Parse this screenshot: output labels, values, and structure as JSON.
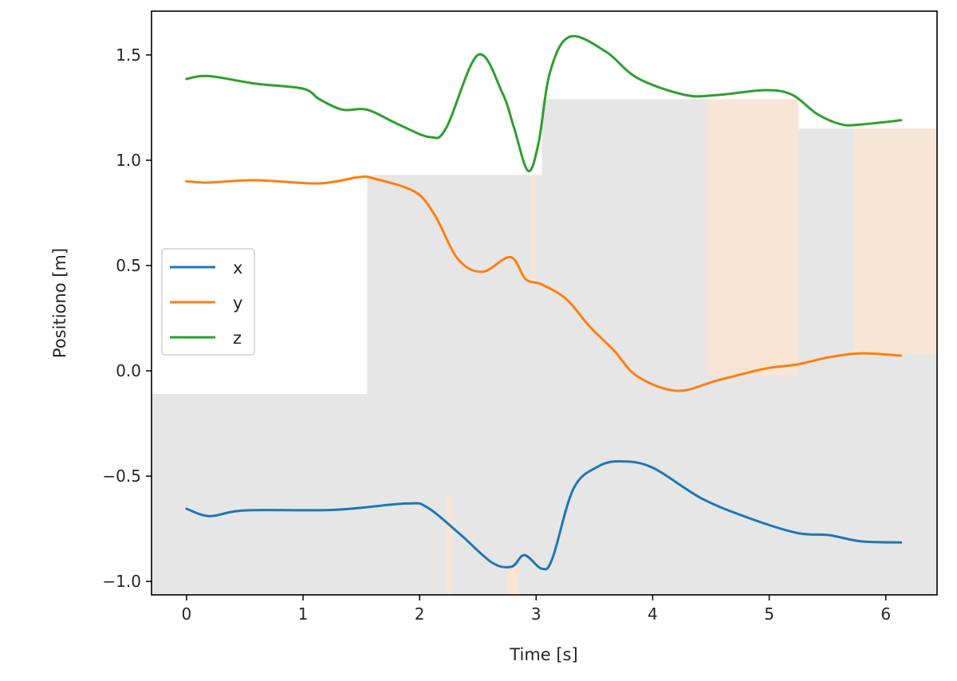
{
  "chart_data": {
    "type": "line",
    "title": "",
    "xlabel": "Time [s]",
    "ylabel": "Positiono [m]",
    "xlim": [
      -0.3,
      6.44
    ],
    "ylim": [
      -1.064,
      1.708
    ],
    "xticks": [
      0,
      1,
      2,
      3,
      4,
      5,
      6
    ],
    "xtick_labels": [
      "0",
      "1",
      "2",
      "3",
      "4",
      "5",
      "6"
    ],
    "yticks": [
      -1.0,
      -0.5,
      0.0,
      0.5,
      1.0,
      1.5
    ],
    "ytick_labels": [
      "−1.0",
      "−0.5",
      "0.0",
      "0.5",
      "1.0",
      "1.5"
    ],
    "grid": false,
    "legend": "center-left",
    "series": [
      {
        "name": "x",
        "color": "#1f77b4",
        "t": [
          0,
          0.2,
          0.5,
          1.27,
          1.89,
          2.07,
          2.35,
          2.62,
          2.79,
          2.9,
          3.05,
          3.14,
          3.32,
          3.53,
          3.73,
          4.0,
          4.42,
          4.83,
          5.24,
          5.51,
          5.79,
          6.13
        ],
        "values": [
          -0.655,
          -0.69,
          -0.663,
          -0.66,
          -0.63,
          -0.65,
          -0.777,
          -0.91,
          -0.93,
          -0.875,
          -0.94,
          -0.89,
          -0.56,
          -0.455,
          -0.43,
          -0.46,
          -0.606,
          -0.7,
          -0.77,
          -0.78,
          -0.81,
          -0.815
        ]
      },
      {
        "name": "y",
        "color": "#ff7f0e",
        "t": [
          0,
          0.19,
          0.59,
          1.14,
          1.48,
          1.61,
          1.96,
          2.13,
          2.33,
          2.54,
          2.78,
          2.91,
          3.05,
          3.26,
          3.46,
          3.67,
          3.87,
          4.21,
          4.56,
          4.97,
          5.24,
          5.51,
          5.79,
          6.13
        ],
        "values": [
          0.9,
          0.894,
          0.905,
          0.89,
          0.92,
          0.913,
          0.85,
          0.74,
          0.53,
          0.47,
          0.54,
          0.435,
          0.41,
          0.34,
          0.21,
          0.095,
          -0.027,
          -0.095,
          -0.045,
          0.011,
          0.03,
          0.064,
          0.083,
          0.072
        ]
      },
      {
        "name": "z",
        "color": "#2ca02c",
        "t": [
          0,
          0.19,
          0.59,
          1.0,
          1.14,
          1.34,
          1.55,
          1.82,
          2.09,
          2.23,
          2.5,
          2.71,
          2.81,
          2.93,
          3.02,
          3.12,
          3.29,
          3.6,
          3.87,
          4.28,
          4.56,
          4.97,
          5.2,
          5.41,
          5.62,
          5.79,
          6.13
        ],
        "values": [
          1.386,
          1.4,
          1.364,
          1.34,
          1.29,
          1.24,
          1.24,
          1.17,
          1.11,
          1.155,
          1.5,
          1.32,
          1.155,
          0.95,
          1.08,
          1.42,
          1.587,
          1.515,
          1.39,
          1.31,
          1.31,
          1.333,
          1.31,
          1.22,
          1.17,
          1.17,
          1.19
        ]
      }
    ],
    "shading": {
      "gray_color": "#e6e6e6",
      "peach_color": "#f8e5d6",
      "gray_steps": [
        {
          "from": -0.3,
          "to": 1.55,
          "top": -0.11
        },
        {
          "from": 1.55,
          "to": 3.05,
          "top": 0.93
        },
        {
          "from": 3.05,
          "to": 5.25,
          "top": 1.29
        },
        {
          "from": 5.25,
          "to": 6.44,
          "top": 1.15
        }
      ],
      "peach_bands": [
        {
          "from": 4.47,
          "to": 5.25,
          "bottom": -0.02,
          "top": 1.29
        },
        {
          "from": 5.73,
          "to": 6.44,
          "bottom": 0.08,
          "top": 1.15
        },
        {
          "from": 2.23,
          "to": 2.28,
          "bottom": -1.064,
          "top": -0.6
        },
        {
          "from": 2.75,
          "to": 2.85,
          "bottom": -1.064,
          "top": -0.93
        },
        {
          "from": 2.95,
          "to": 2.99,
          "bottom": 0.42,
          "top": 0.93
        }
      ]
    }
  }
}
